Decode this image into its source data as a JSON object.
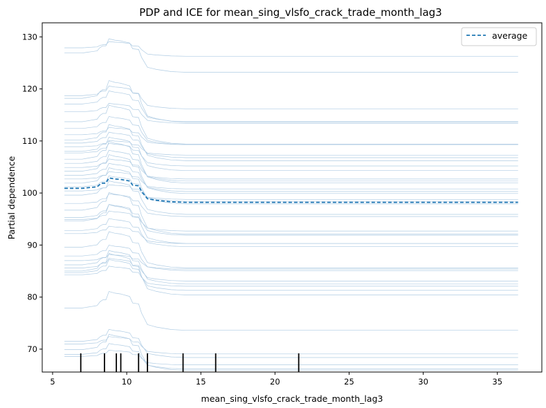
{
  "chart_data": {
    "type": "line",
    "title": "PDP and ICE for mean_sing_vlsfo_crack_trade_month_lag3",
    "xlabel": "mean_sing_vlsfo_crack_trade_month_lag3",
    "ylabel": "Partial dependence",
    "xlim": [
      4.3,
      38.0
    ],
    "ylim": [
      65.6,
      132.7
    ],
    "xticks": [
      5,
      10,
      15,
      20,
      25,
      30,
      35
    ],
    "yticks": [
      70,
      80,
      90,
      100,
      110,
      120,
      130
    ],
    "grid": false,
    "legend_position": "top-right",
    "colors": {
      "ice": "#aecbe3",
      "average": "#1f77b4",
      "rug": "#000000",
      "axes": "#000000"
    },
    "average": {
      "name": "average",
      "style": "dashed",
      "points": [
        [
          5.8,
          100.9
        ],
        [
          7.0,
          100.9
        ],
        [
          8.0,
          101.2
        ],
        [
          8.3,
          101.9
        ],
        [
          8.6,
          101.9
        ],
        [
          8.8,
          102.9
        ],
        [
          9.2,
          102.7
        ],
        [
          9.6,
          102.6
        ],
        [
          10.2,
          102.3
        ],
        [
          10.4,
          101.5
        ],
        [
          10.8,
          101.4
        ],
        [
          11.0,
          100.3
        ],
        [
          11.4,
          98.9
        ],
        [
          12.0,
          98.6
        ],
        [
          13.0,
          98.3
        ],
        [
          14.0,
          98.2
        ],
        [
          20.0,
          98.2
        ],
        [
          36.4,
          98.2
        ]
      ]
    },
    "ice_baselines": [
      68.6,
      69.0,
      69.9,
      71.0,
      71.5,
      77.9,
      84.3,
      84.7,
      85.0,
      85.6,
      86.2,
      87.0,
      87.9,
      89.6,
      92.2,
      92.8,
      94.6,
      94.9,
      95.3,
      96.7,
      98.0,
      99.6,
      100.4,
      101.2,
      101.9,
      102.7,
      103.4,
      104.2,
      104.9,
      105.7,
      106.5,
      107.7,
      108.0,
      108.9,
      109.6,
      110.2,
      111.2,
      112.4,
      113.7,
      115.6,
      117.1,
      118.2,
      118.7,
      126.9,
      127.9
    ],
    "rug_ticks": [
      6.9,
      8.5,
      9.3,
      9.6,
      10.8,
      11.4,
      13.8,
      16.0,
      21.6
    ]
  }
}
